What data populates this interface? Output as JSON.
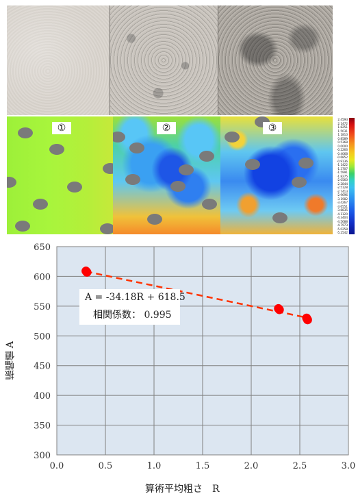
{
  "photos": {
    "panels": [
      "surface-photo-1",
      "surface-photo-2",
      "surface-photo-3"
    ]
  },
  "maps": {
    "badges": [
      "①",
      "②",
      "③"
    ]
  },
  "colorbar": {
    "labels": [
      "2.4593",
      "2.1472",
      "1.8251",
      "1.5031",
      "1.1810",
      "0.8589",
      "0.5368",
      "0.0000",
      "-0.2266",
      "-0.4068",
      "-0.6852",
      "-0.9136",
      "-1.1422",
      "-1.3707",
      "-1.5991",
      "-1.8275",
      "-2.0560",
      "-2.2844",
      "-2.5128",
      "-2.7413",
      "-2.9696",
      "-3.1982",
      "-3.4267",
      "-3.6551",
      "-3.8835",
      "-4.1120",
      "-4.3404",
      "-4.5688",
      "-4.7973",
      "-5.0258",
      "-5.2542"
    ],
    "colors": [
      "#8a0010",
      "#d81010",
      "#f5901e",
      "#e8e81e",
      "#3ad06a",
      "#3ac0f0",
      "#1a5ae8",
      "#0a1490"
    ]
  },
  "chart_data": {
    "type": "scatter",
    "xlabel": "算術平均粗さ　R",
    "ylabel": "振幅値 A",
    "xlim": [
      0.0,
      3.0
    ],
    "ylim": [
      300,
      650
    ],
    "xticks": [
      "0.0",
      "0.5",
      "1.0",
      "1.5",
      "2.0",
      "2.5",
      "3.0"
    ],
    "yticks": [
      "300",
      "350",
      "400",
      "450",
      "500",
      "550",
      "600",
      "650"
    ],
    "grid": true,
    "background": "#dce6f1",
    "point_color": "#ff0000",
    "trendline_color": "#ff3300",
    "points": [
      {
        "x": 0.3,
        "y": 609
      },
      {
        "x": 0.31,
        "y": 607
      },
      {
        "x": 2.28,
        "y": 546
      },
      {
        "x": 2.29,
        "y": 544
      },
      {
        "x": 2.57,
        "y": 530
      },
      {
        "x": 2.58,
        "y": 527
      }
    ],
    "trendline": {
      "slope": -34.18,
      "intercept": 618.5,
      "x_range": [
        0.3,
        2.6
      ]
    },
    "annotation": {
      "equation": "A = -34.18R + 618.5",
      "correlation": "相関係数：  0.995"
    }
  }
}
